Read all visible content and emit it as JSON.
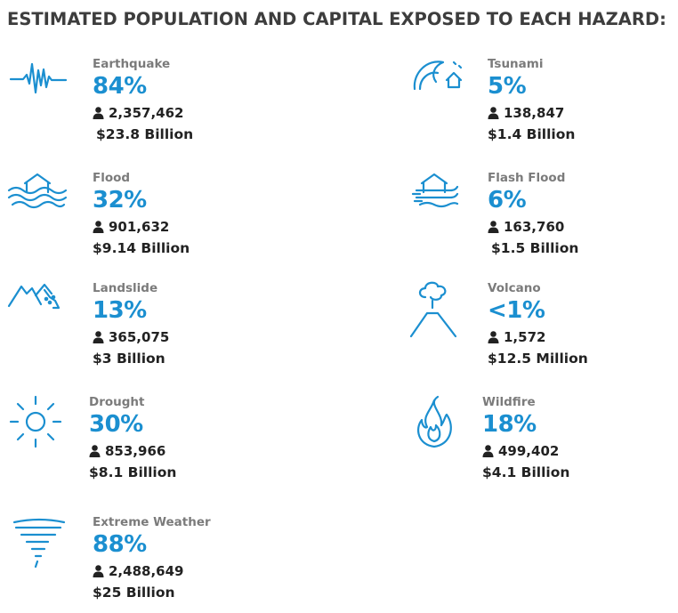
{
  "title": "ESTIMATED POPULATION AND CAPITAL EXPOSED TO EACH HAZARD:",
  "colors": {
    "accent": "#1b8fd0",
    "label": "#7b7b7b",
    "text": "#222222",
    "title": "#3d3d3d"
  },
  "hazards": [
    {
      "name": "Earthquake",
      "icon": "seismograph-icon",
      "percent": "84%",
      "population": "2,357,462",
      "capital": "$23.8 Billion"
    },
    {
      "name": "Tsunami",
      "icon": "wave-house-icon",
      "percent": "5%",
      "population": "138,847",
      "capital": "$1.4 Billion"
    },
    {
      "name": "Flood",
      "icon": "flood-house-icon",
      "percent": "32%",
      "population": "901,632",
      "capital": "$9.14 Billion"
    },
    {
      "name": "Flash Flood",
      "icon": "flash-flood-house-icon",
      "percent": "6%",
      "population": "163,760",
      "capital": "$1.5 Billion"
    },
    {
      "name": "Landslide",
      "icon": "landslide-icon",
      "percent": "13%",
      "population": "365,075",
      "capital": "$3 Billion"
    },
    {
      "name": "Volcano",
      "icon": "volcano-icon",
      "percent": "<1%",
      "population": "1,572",
      "capital": "$12.5 Million"
    },
    {
      "name": "Drought",
      "icon": "sun-icon",
      "percent": "30%",
      "population": "853,966",
      "capital": "$8.1 Billion"
    },
    {
      "name": "Wildfire",
      "icon": "flame-icon",
      "percent": "18%",
      "population": "499,402",
      "capital": "$4.1 Billion"
    },
    {
      "name": "Extreme Weather",
      "icon": "tornado-icon",
      "percent": "88%",
      "population": "2,488,649",
      "capital": "$25 Billion"
    }
  ]
}
